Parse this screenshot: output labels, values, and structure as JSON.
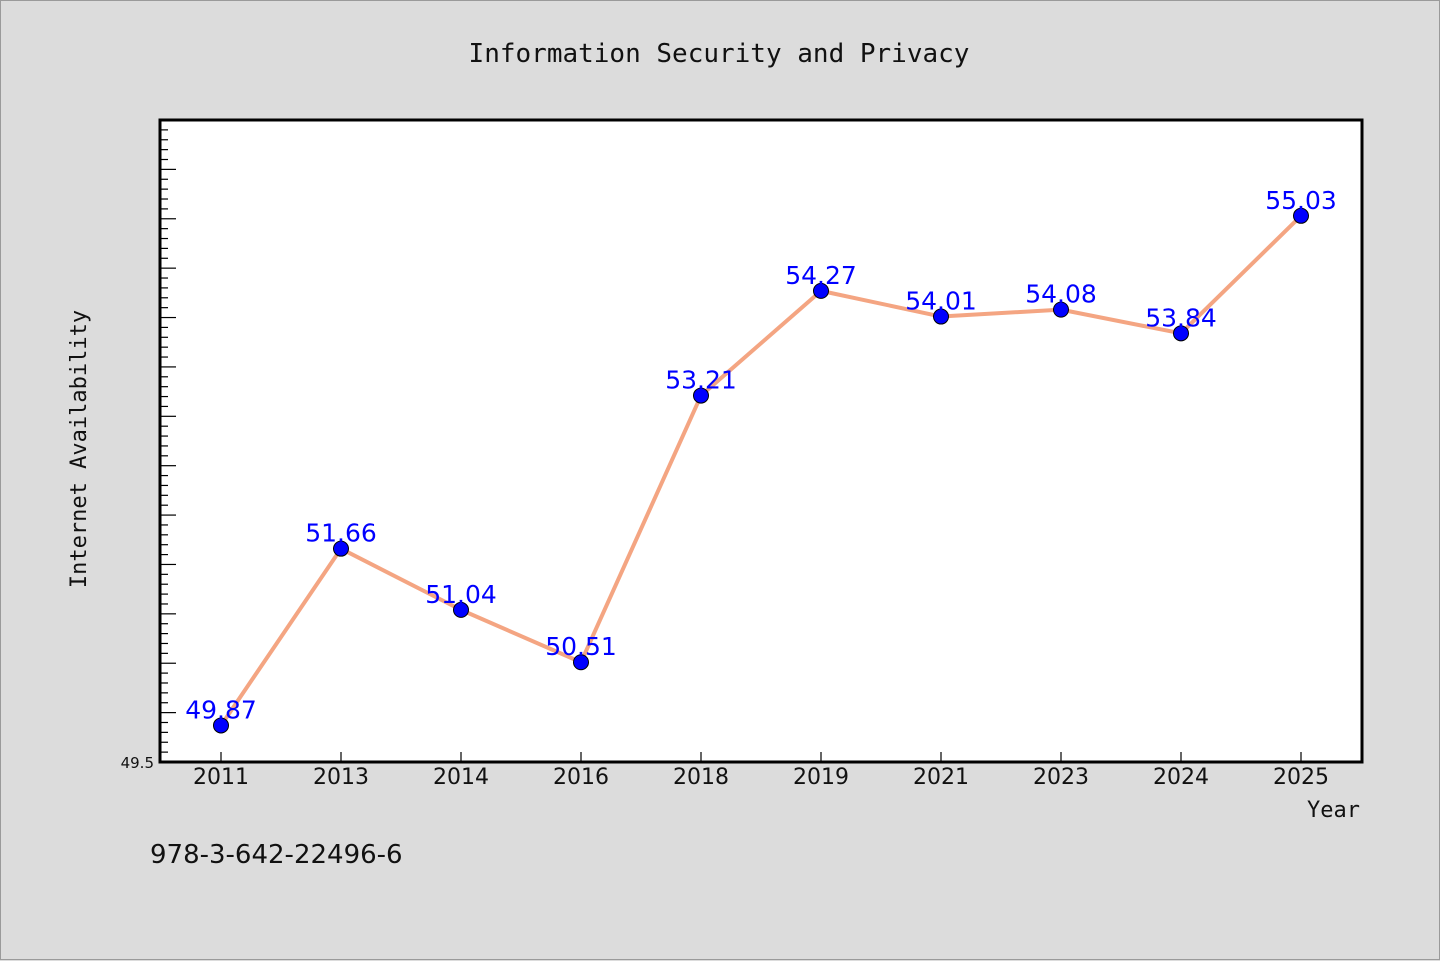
{
  "footer_text": "978-3-642-22496-6",
  "colors": {
    "background": "#dcdcdc",
    "plot_background": "#ffffff",
    "line": "#f4a582",
    "marker": "#0000ff",
    "data_label": "#0000ff"
  },
  "chart_data": {
    "type": "line",
    "title": "Information Security and Privacy",
    "xlabel": "Year",
    "ylabel": "Internet Availability",
    "categories": [
      "2011",
      "2013",
      "2014",
      "2016",
      "2018",
      "2019",
      "2021",
      "2023",
      "2024",
      "2025"
    ],
    "values": [
      49.87,
      51.66,
      51.04,
      50.51,
      53.21,
      54.27,
      54.01,
      54.08,
      53.84,
      55.03
    ],
    "data_labels": [
      "49.87",
      "51.66",
      "51.04",
      "50.51",
      "53.21",
      "54.27",
      "54.01",
      "54.08",
      "53.84",
      "55.03"
    ],
    "ylim": [
      49.5,
      56.0
    ],
    "yticks_labeled": [
      "49.5"
    ],
    "y_major_step": 0.5,
    "y_minor_step": 0.1,
    "grid": false,
    "legend": "none"
  }
}
